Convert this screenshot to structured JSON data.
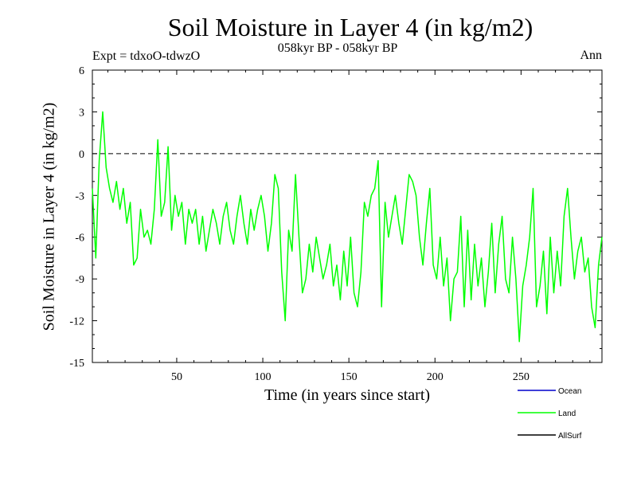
{
  "chart_data": {
    "type": "line",
    "title": "Soil Moisture in Layer 4 (in kg/m2)",
    "subtitle": "058kyr BP - 058kyr BP",
    "expt_label": "Expt = tdxoO-tdwzO",
    "period_label": "Ann",
    "xlabel": "Time (in years since start)",
    "ylabel": "Soil Moisture in Layer 4 (in kg/m2)",
    "xlim": [
      1,
      297
    ],
    "ylim": [
      -15,
      6
    ],
    "xticks": [
      50,
      100,
      150,
      200,
      250
    ],
    "yticks": [
      6,
      3,
      0,
      -3,
      -6,
      -9,
      -12,
      -15
    ],
    "reference_line": {
      "y": 0,
      "style": "dashed"
    },
    "legend": [
      {
        "name": "Ocean",
        "color": "#0000cc"
      },
      {
        "name": "Land",
        "color": "#00ff00"
      },
      {
        "name": "AllSurf",
        "color": "#000000"
      }
    ],
    "series": [
      {
        "name": "Land",
        "color": "#00ff00",
        "x": [
          1,
          3,
          5,
          7,
          9,
          11,
          13,
          15,
          17,
          19,
          21,
          23,
          25,
          27,
          29,
          31,
          33,
          35,
          37,
          39,
          41,
          43,
          45,
          47,
          49,
          51,
          53,
          55,
          57,
          59,
          61,
          63,
          65,
          67,
          69,
          71,
          73,
          75,
          77,
          79,
          81,
          83,
          85,
          87,
          89,
          91,
          93,
          95,
          97,
          99,
          101,
          103,
          105,
          107,
          109,
          111,
          113,
          115,
          117,
          119,
          121,
          123,
          125,
          127,
          129,
          131,
          133,
          135,
          137,
          139,
          141,
          143,
          145,
          147,
          149,
          151,
          153,
          155,
          157,
          159,
          161,
          163,
          165,
          167,
          169,
          171,
          173,
          175,
          177,
          179,
          181,
          183,
          185,
          187,
          189,
          191,
          193,
          195,
          197,
          199,
          201,
          203,
          205,
          207,
          209,
          211,
          213,
          215,
          217,
          219,
          221,
          223,
          225,
          227,
          229,
          231,
          233,
          235,
          237,
          239,
          241,
          243,
          245,
          247,
          249,
          251,
          253,
          255,
          257,
          259,
          261,
          263,
          265,
          267,
          269,
          271,
          273,
          275,
          277,
          279,
          281,
          283,
          285,
          287,
          289,
          291,
          293,
          295,
          297
        ],
        "y": [
          -2.5,
          -7.5,
          -0.5,
          3.0,
          -1.0,
          -2.5,
          -3.5,
          -2.0,
          -4.0,
          -2.5,
          -5.0,
          -3.5,
          -8.0,
          -7.5,
          -4.0,
          -6.0,
          -5.5,
          -6.5,
          -4.0,
          1.0,
          -4.5,
          -3.5,
          0.5,
          -5.5,
          -3.0,
          -4.5,
          -3.5,
          -6.5,
          -4.0,
          -5.0,
          -4.0,
          -6.5,
          -4.5,
          -7.0,
          -5.5,
          -4.0,
          -5.0,
          -6.5,
          -4.5,
          -3.5,
          -5.5,
          -6.5,
          -4.5,
          -3.0,
          -5.0,
          -6.5,
          -4.0,
          -5.5,
          -4.0,
          -3.0,
          -4.5,
          -7.0,
          -5.0,
          -1.5,
          -2.5,
          -8.5,
          -12.0,
          -5.5,
          -7.0,
          -1.5,
          -6.0,
          -10.0,
          -9.0,
          -6.5,
          -8.5,
          -6.0,
          -7.5,
          -9.0,
          -8.0,
          -6.5,
          -9.5,
          -8.0,
          -10.5,
          -7.0,
          -9.5,
          -6.0,
          -10.0,
          -11.0,
          -8.5,
          -3.5,
          -4.5,
          -3.0,
          -2.5,
          -0.5,
          -11.0,
          -3.5,
          -6.0,
          -4.5,
          -3.0,
          -5.0,
          -6.5,
          -4.0,
          -1.5,
          -2.0,
          -3.0,
          -6.0,
          -8.0,
          -5.0,
          -2.5,
          -8.0,
          -9.0,
          -6.0,
          -9.5,
          -7.5,
          -12.0,
          -9.0,
          -8.5,
          -4.5,
          -11.0,
          -5.5,
          -10.5,
          -6.5,
          -9.5,
          -7.5,
          -11.0,
          -8.5,
          -5.0,
          -10.0,
          -6.5,
          -4.5,
          -9.0,
          -10.0,
          -6.0,
          -9.0,
          -13.5,
          -9.5,
          -8.0,
          -6.0,
          -2.5,
          -11.0,
          -9.5,
          -7.0,
          -11.5,
          -6.0,
          -10.0,
          -7.0,
          -9.5,
          -4.5,
          -2.5,
          -6.0,
          -9.0,
          -7.0,
          -6.0,
          -8.5,
          -7.5,
          -11.0,
          -12.5,
          -8.0,
          -6.0
        ]
      }
    ]
  }
}
